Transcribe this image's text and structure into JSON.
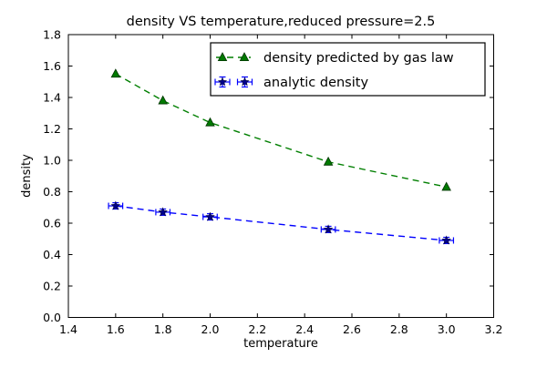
{
  "chart_data": {
    "type": "line",
    "title": "density VS temperature,reduced pressure=2.5",
    "xlabel": "temperature",
    "ylabel": "density",
    "xlim": [
      1.4,
      3.2
    ],
    "ylim": [
      0.0,
      1.8
    ],
    "x_ticks": [
      1.4,
      1.6,
      1.8,
      2.0,
      2.2,
      2.4,
      2.6,
      2.8,
      3.0,
      3.2
    ],
    "y_ticks": [
      0.0,
      0.2,
      0.4,
      0.6,
      0.8,
      1.0,
      1.2,
      1.4,
      1.6,
      1.8
    ],
    "grid": false,
    "legend_position": "upper center inside",
    "series": [
      {
        "name": "density predicted by gas law",
        "x": [
          1.6,
          1.8,
          2.0,
          2.5,
          3.0
        ],
        "y": [
          1.55,
          1.38,
          1.24,
          0.99,
          0.83
        ],
        "color": "#007f00",
        "marker": "triangle-up",
        "marker_fill": "#007a00",
        "marker_edge": "#003300",
        "line_style": "dashed"
      },
      {
        "name": "analytic density",
        "x": [
          1.6,
          1.8,
          2.0,
          2.5,
          3.0
        ],
        "y": [
          0.71,
          0.67,
          0.64,
          0.56,
          0.49
        ],
        "xerr": [
          0.03,
          0.03,
          0.03,
          0.03,
          0.03
        ],
        "yerr": [
          0.02,
          0.02,
          0.02,
          0.02,
          0.02
        ],
        "color": "#0000ff",
        "marker": "star",
        "marker_fill": "#00008b",
        "marker_edge": "#000044",
        "line_style": "dashed"
      }
    ]
  }
}
